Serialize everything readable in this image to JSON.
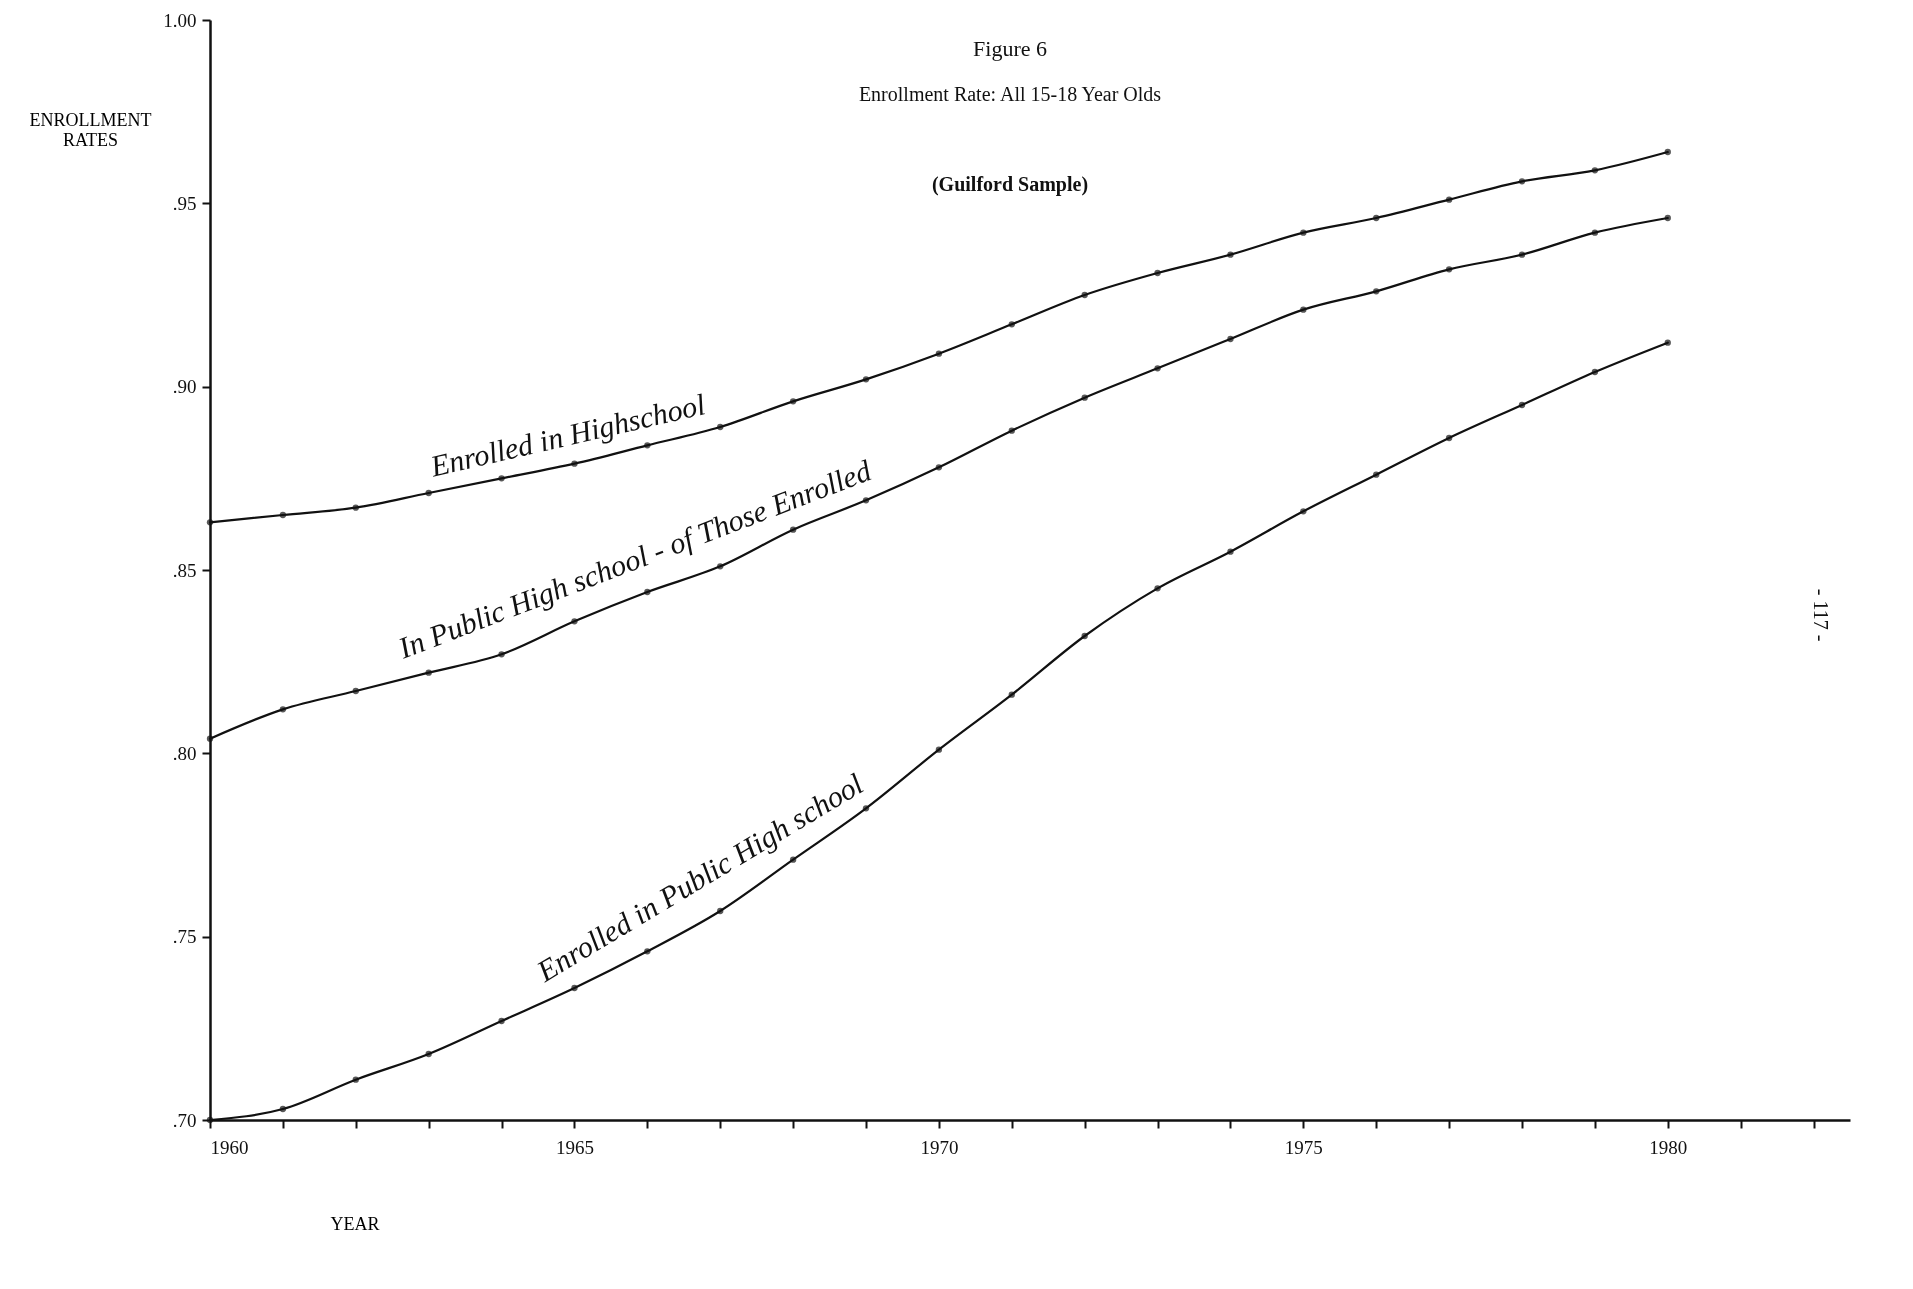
{
  "chart_data": {
    "type": "line",
    "title": "Figure 6",
    "subtitle": "Enrollment Rate: All 15-18 Year Olds",
    "xlabel": "YEAR",
    "ylabel": "ENROLLMENT RATES",
    "annotations": [
      "(Guilford Sample)",
      "- 117 -"
    ],
    "x": [
      1960,
      1961,
      1962,
      1963,
      1964,
      1965,
      1966,
      1967,
      1968,
      1969,
      1970,
      1971,
      1972,
      1973,
      1974,
      1975,
      1976,
      1977,
      1978,
      1979,
      1980
    ],
    "series": [
      {
        "name": "Enrolled in Highschool",
        "color": "#111111",
        "values": [
          0.863,
          0.865,
          0.867,
          0.871,
          0.875,
          0.879,
          0.884,
          0.889,
          0.896,
          0.902,
          0.909,
          0.917,
          0.925,
          0.931,
          0.936,
          0.942,
          0.946,
          0.951,
          0.956,
          0.959,
          0.964
        ]
      },
      {
        "name": "In Public High school - of Those Enrolled",
        "color": "#111111",
        "values": [
          0.804,
          0.812,
          0.817,
          0.822,
          0.827,
          0.836,
          0.844,
          0.851,
          0.861,
          0.869,
          0.878,
          0.888,
          0.897,
          0.905,
          0.913,
          0.921,
          0.926,
          0.932,
          0.936,
          0.942,
          0.946
        ]
      },
      {
        "name": "Enrolled in Public High school",
        "color": "#111111",
        "values": [
          0.7,
          0.703,
          0.711,
          0.718,
          0.727,
          0.736,
          0.746,
          0.757,
          0.771,
          0.785,
          0.801,
          0.816,
          0.832,
          0.845,
          0.855,
          0.866,
          0.876,
          0.886,
          0.895,
          0.904,
          0.912
        ]
      }
    ],
    "xlim": [
      1960,
      1982.5
    ],
    "xticks": [
      1960,
      {
        "value": 1961,
        "label": null
      },
      {
        "value": 1962,
        "label": null
      },
      {
        "value": 1963,
        "label": null
      },
      {
        "value": 1964,
        "label": null
      },
      1965,
      {
        "value": 1966,
        "label": null
      },
      {
        "value": 1967,
        "label": null
      },
      {
        "value": 1968,
        "label": null
      },
      {
        "value": 1969,
        "label": null
      },
      1970,
      {
        "value": 1971,
        "label": null
      },
      {
        "value": 1972,
        "label": null
      },
      {
        "value": 1973,
        "label": null
      },
      {
        "value": 1974,
        "label": null
      },
      1975,
      {
        "value": 1976,
        "label": null
      },
      {
        "value": 1977,
        "label": null
      },
      {
        "value": 1978,
        "label": null
      },
      {
        "value": 1979,
        "label": null
      },
      1980,
      {
        "value": 1981,
        "label": null
      },
      {
        "value": 1982,
        "label": null
      }
    ],
    "ylim": [
      0.7,
      1.0
    ],
    "yticks": [
      {
        "value": 0.7,
        "label": ".70"
      },
      {
        "value": 0.75,
        "label": ".75"
      },
      {
        "value": 0.8,
        "label": ".80"
      },
      {
        "value": 0.85,
        "label": ".85"
      },
      {
        "value": 0.9,
        "label": ".90"
      },
      {
        "value": 0.95,
        "label": ".95"
      },
      {
        "value": 1.0,
        "label": "1.00"
      }
    ],
    "grid": false,
    "legend": false,
    "marker": "circle",
    "line_style": "solid"
  }
}
